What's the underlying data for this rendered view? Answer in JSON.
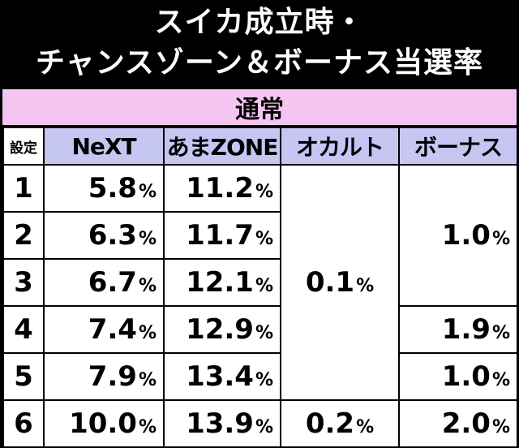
{
  "title": {
    "line1": "スイカ成立時・",
    "line2": "チャンスゾーン＆ボーナス当選率"
  },
  "section_label": "通常",
  "columns": {
    "setting": "設定",
    "next": "NeXT",
    "amazone": "あまZONE",
    "occult": "オカルト",
    "bonus": "ボーナス"
  },
  "percent_sign": "%",
  "rows": [
    {
      "setting": "1",
      "next": "5.8",
      "amazone": "11.2"
    },
    {
      "setting": "2",
      "next": "6.3",
      "amazone": "11.7"
    },
    {
      "setting": "3",
      "next": "6.7",
      "amazone": "12.1"
    },
    {
      "setting": "4",
      "next": "7.4",
      "amazone": "12.9"
    },
    {
      "setting": "5",
      "next": "7.9",
      "amazone": "13.4"
    },
    {
      "setting": "6",
      "next": "10.0",
      "amazone": "13.9"
    }
  ],
  "occult": {
    "settings_1_5": "0.1",
    "setting_6": "0.2"
  },
  "bonus": {
    "settings_1_3": "1.0",
    "setting_4": "1.9",
    "setting_5": "1.0",
    "setting_6": "2.0"
  }
}
